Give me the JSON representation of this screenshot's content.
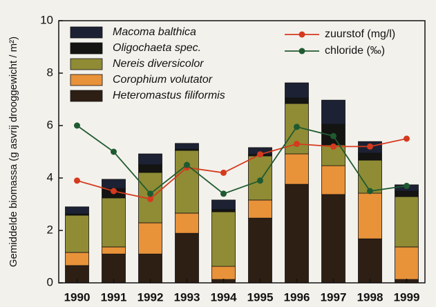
{
  "chart_data": {
    "type": "bar",
    "stacked": true,
    "y_label": "Gemiddelde biomassa (g asvrij drooggewicht / m²)",
    "categories": [
      "1990",
      "1991",
      "1992",
      "1993",
      "1994",
      "1995",
      "1996",
      "1997",
      "1998",
      "1999"
    ],
    "ylim": [
      0,
      10
    ],
    "yticks": [
      0,
      2,
      4,
      6,
      8,
      10
    ],
    "series": [
      {
        "name": "Heteromastus filiformis",
        "color": "#2e1f14",
        "values": [
          0.66,
          1.1,
          1.1,
          1.89,
          0.13,
          2.47,
          3.76,
          3.37,
          1.68,
          0.13
        ]
      },
      {
        "name": "Corophium volutator",
        "color": "#e8923a",
        "values": [
          0.5,
          0.27,
          1.19,
          0.77,
          0.5,
          0.69,
          1.16,
          1.1,
          1.74,
          1.24
        ]
      },
      {
        "name": "Nereis diversicolor",
        "color": "#8f8c35",
        "values": [
          1.42,
          1.87,
          1.92,
          2.39,
          2.08,
          1.68,
          1.92,
          0.79,
          1.26,
          1.92
        ]
      },
      {
        "name": "Oligochaeta spec.",
        "color": "#141412",
        "values": [
          0.05,
          0.36,
          0.29,
          0.05,
          0.09,
          0.06,
          0.21,
          0.79,
          0.27,
          0.21
        ]
      },
      {
        "name": "Macoma balthica",
        "color": "#1c2233",
        "values": [
          0.27,
          0.35,
          0.42,
          0.22,
          0.36,
          0.26,
          0.58,
          0.92,
          0.44,
          0.24
        ]
      }
    ],
    "lines": [
      {
        "name": "zuurstof (mg/l)",
        "color": "#d43a1e",
        "values": [
          3.9,
          3.5,
          3.2,
          4.4,
          4.2,
          4.9,
          5.3,
          5.2,
          5.2,
          5.5
        ]
      },
      {
        "name": "chloride (‰)",
        "color": "#1f5a30",
        "values": [
          6.0,
          5.0,
          3.4,
          4.5,
          3.4,
          3.9,
          5.95,
          5.6,
          3.5,
          3.7
        ]
      }
    ]
  }
}
